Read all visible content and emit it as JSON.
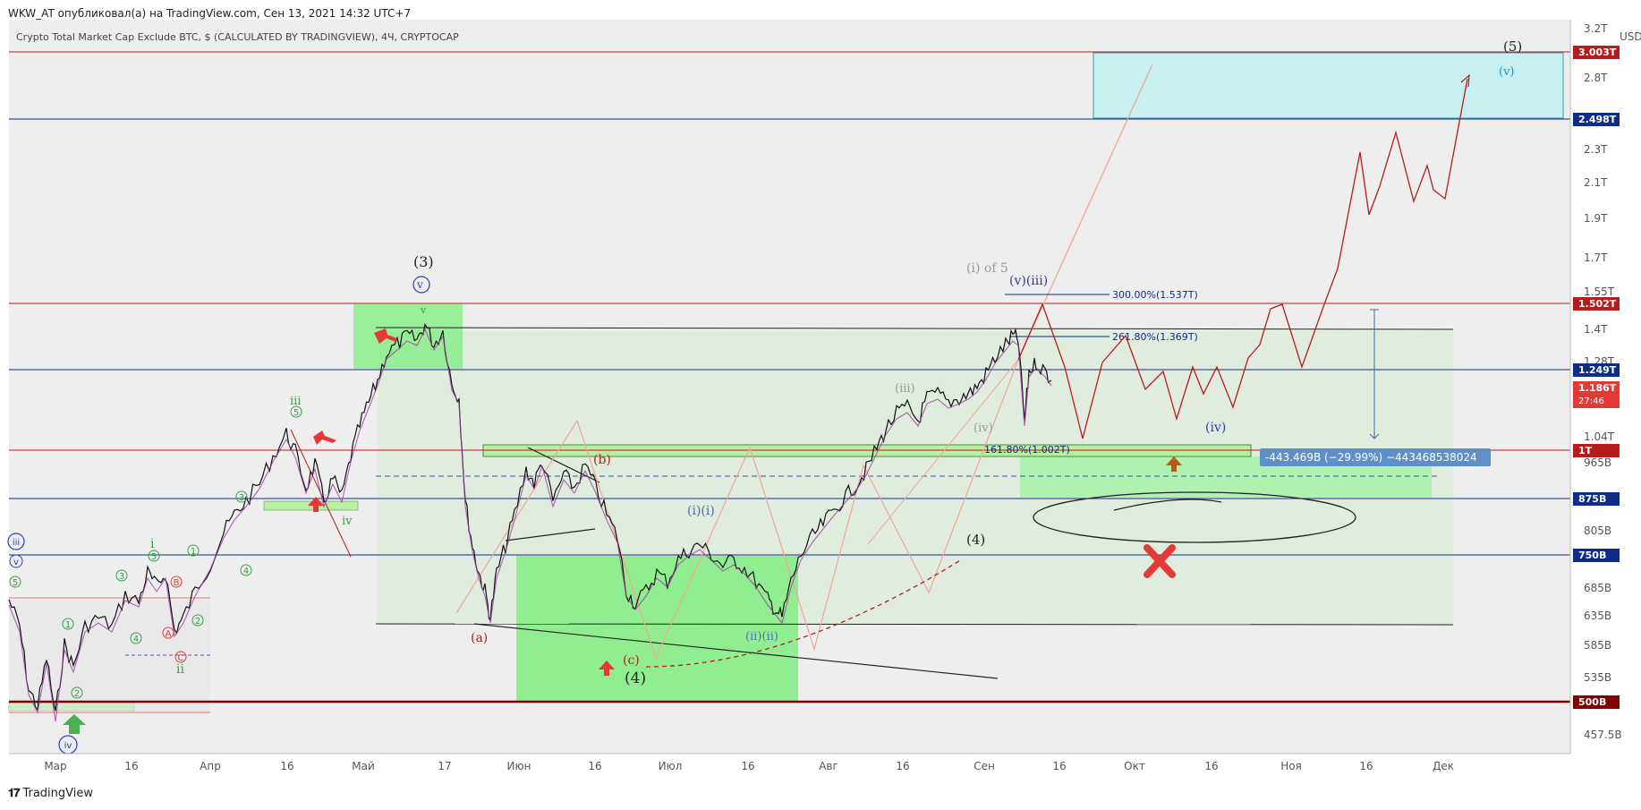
{
  "header": {
    "publisher": "WKW_AT опубликовал(а) на TradingView.com, Сен 13, 2021 14:32 UTC+7",
    "symbol": "Crypto Total Market Cap Exclude BTC, $ (CALCULATED BY TRADINGVIEW), 4Ч, CRYPTOCAP"
  },
  "footer": {
    "brand": "TradingView"
  },
  "price_axis": {
    "currency": "USD",
    "ticks": [
      "3.2T",
      "2.8T",
      "2.3T",
      "2.1T",
      "1.9T",
      "1.7T",
      "1.55T",
      "1.4T",
      "1.28T",
      "1.04T",
      "965B",
      "875B",
      "805B",
      "685B",
      "635B",
      "585B",
      "535B",
      "457.5B"
    ],
    "badges": [
      {
        "label": "3.003T",
        "color": "#b71c1c"
      },
      {
        "label": "2.498T",
        "color": "#0d2d8a"
      },
      {
        "label": "1.502T",
        "color": "#b71c1c"
      },
      {
        "label": "1.249T",
        "color": "#0d2d8a"
      },
      {
        "label": "1.186T",
        "color": "#e53935",
        "sub": "27:46"
      },
      {
        "label": "1T",
        "color": "#b71c1c"
      },
      {
        "label": "875B",
        "color": "#0d2d8a"
      },
      {
        "label": "750B",
        "color": "#0d2d8a"
      },
      {
        "label": "500B",
        "color": "#7f0000"
      }
    ]
  },
  "time_axis": {
    "ticks": [
      "Мар",
      "16",
      "Апр",
      "16",
      "Май",
      "17",
      "Июн",
      "16",
      "Июл",
      "16",
      "Авг",
      "16",
      "Сен",
      "16",
      "Окт",
      "16",
      "Ноя",
      "16",
      "Дек"
    ]
  },
  "fib_labels": [
    "300.00%(1.537T)",
    "261.80%(1.369T)",
    "161.80%(1.002T)"
  ],
  "measure_label": "-443.469B (−29.99%) −443468538024",
  "wave_labels": {
    "w5_top": "(5)",
    "wv_top": "(v)",
    "w3": "(3)",
    "v_circle": "v",
    "v_small": "v",
    "iof5": "(i) of 5",
    "viii": "(v)(iii)",
    "iii_grey": "(iii)",
    "iv_grey": "(iv)",
    "iv_blue": "(iv)",
    "w4_right": "(4)",
    "w4_bottom": "(4)",
    "a": "(a)",
    "b": "(b)",
    "c": "(c)",
    "ii_blue": "(i)(i)",
    "iiii": "(ii)(ii)",
    "iii_green": "iii",
    "five_green": "5",
    "iv_green": "iv",
    "i_green": "i",
    "ii_green": "ii",
    "iii_left": "iii",
    "v_left": "v",
    "five_left": "5",
    "iv_bottom": "iv",
    "c3": "3",
    "c5": "5",
    "c1": "1",
    "c2": "2",
    "c4": "4",
    "cA": "A",
    "cB": "B",
    "cC": "C",
    "c1b": "1",
    "c2b": "2",
    "c3b": "3",
    "c4b": "4",
    "c5b": "5",
    "c2c": "2"
  },
  "colors": {
    "green_zone": "#90EE90",
    "cyan_zone": "#c8f0f0",
    "red_line": "#b71c1c",
    "blue_line": "#0d2d8a",
    "projection": "#b22222"
  }
}
